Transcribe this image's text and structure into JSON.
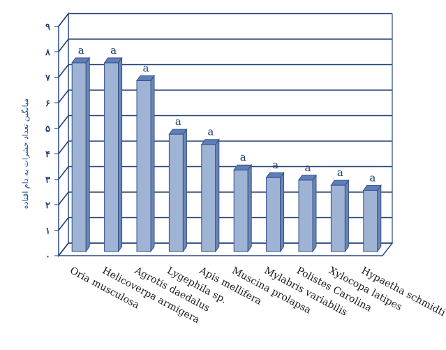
{
  "chart_data": {
    "type": "bar",
    "title": "",
    "xlabel": "",
    "ylabel": "میانگین تعداد حشرات به دام افتاده",
    "ylim": [
      0,
      9
    ],
    "yticks": [
      "۰",
      "۱",
      "۲",
      "۳",
      "۴",
      "۵",
      "۶",
      "۷",
      "۸",
      "۹"
    ],
    "grid": true,
    "style": "3d-cylinder",
    "colors": {
      "bar": "#9fb4d4",
      "bar_side": "#6d86b3",
      "bar_top": "#5f7fb8",
      "grid": "#1f3f73",
      "wall": "#2b4a8a"
    },
    "categories": [
      "Oria musculosa",
      "Helicoverpa armigera",
      "Agrotis daedalus",
      "Lygephila sp.",
      "Apis mellifera",
      "Muscina prolapsa",
      "Mylabris variabilis",
      "Polistes Carolina",
      "Xylocopa latipes",
      "Hypaetha schmidti"
    ],
    "values": [
      7.4,
      7.4,
      6.7,
      4.6,
      4.2,
      3.2,
      2.9,
      2.8,
      2.6,
      2.4
    ],
    "labels": [
      "a",
      "a",
      "a",
      "a",
      "a",
      "a",
      "a",
      "a",
      "a",
      "a"
    ]
  }
}
